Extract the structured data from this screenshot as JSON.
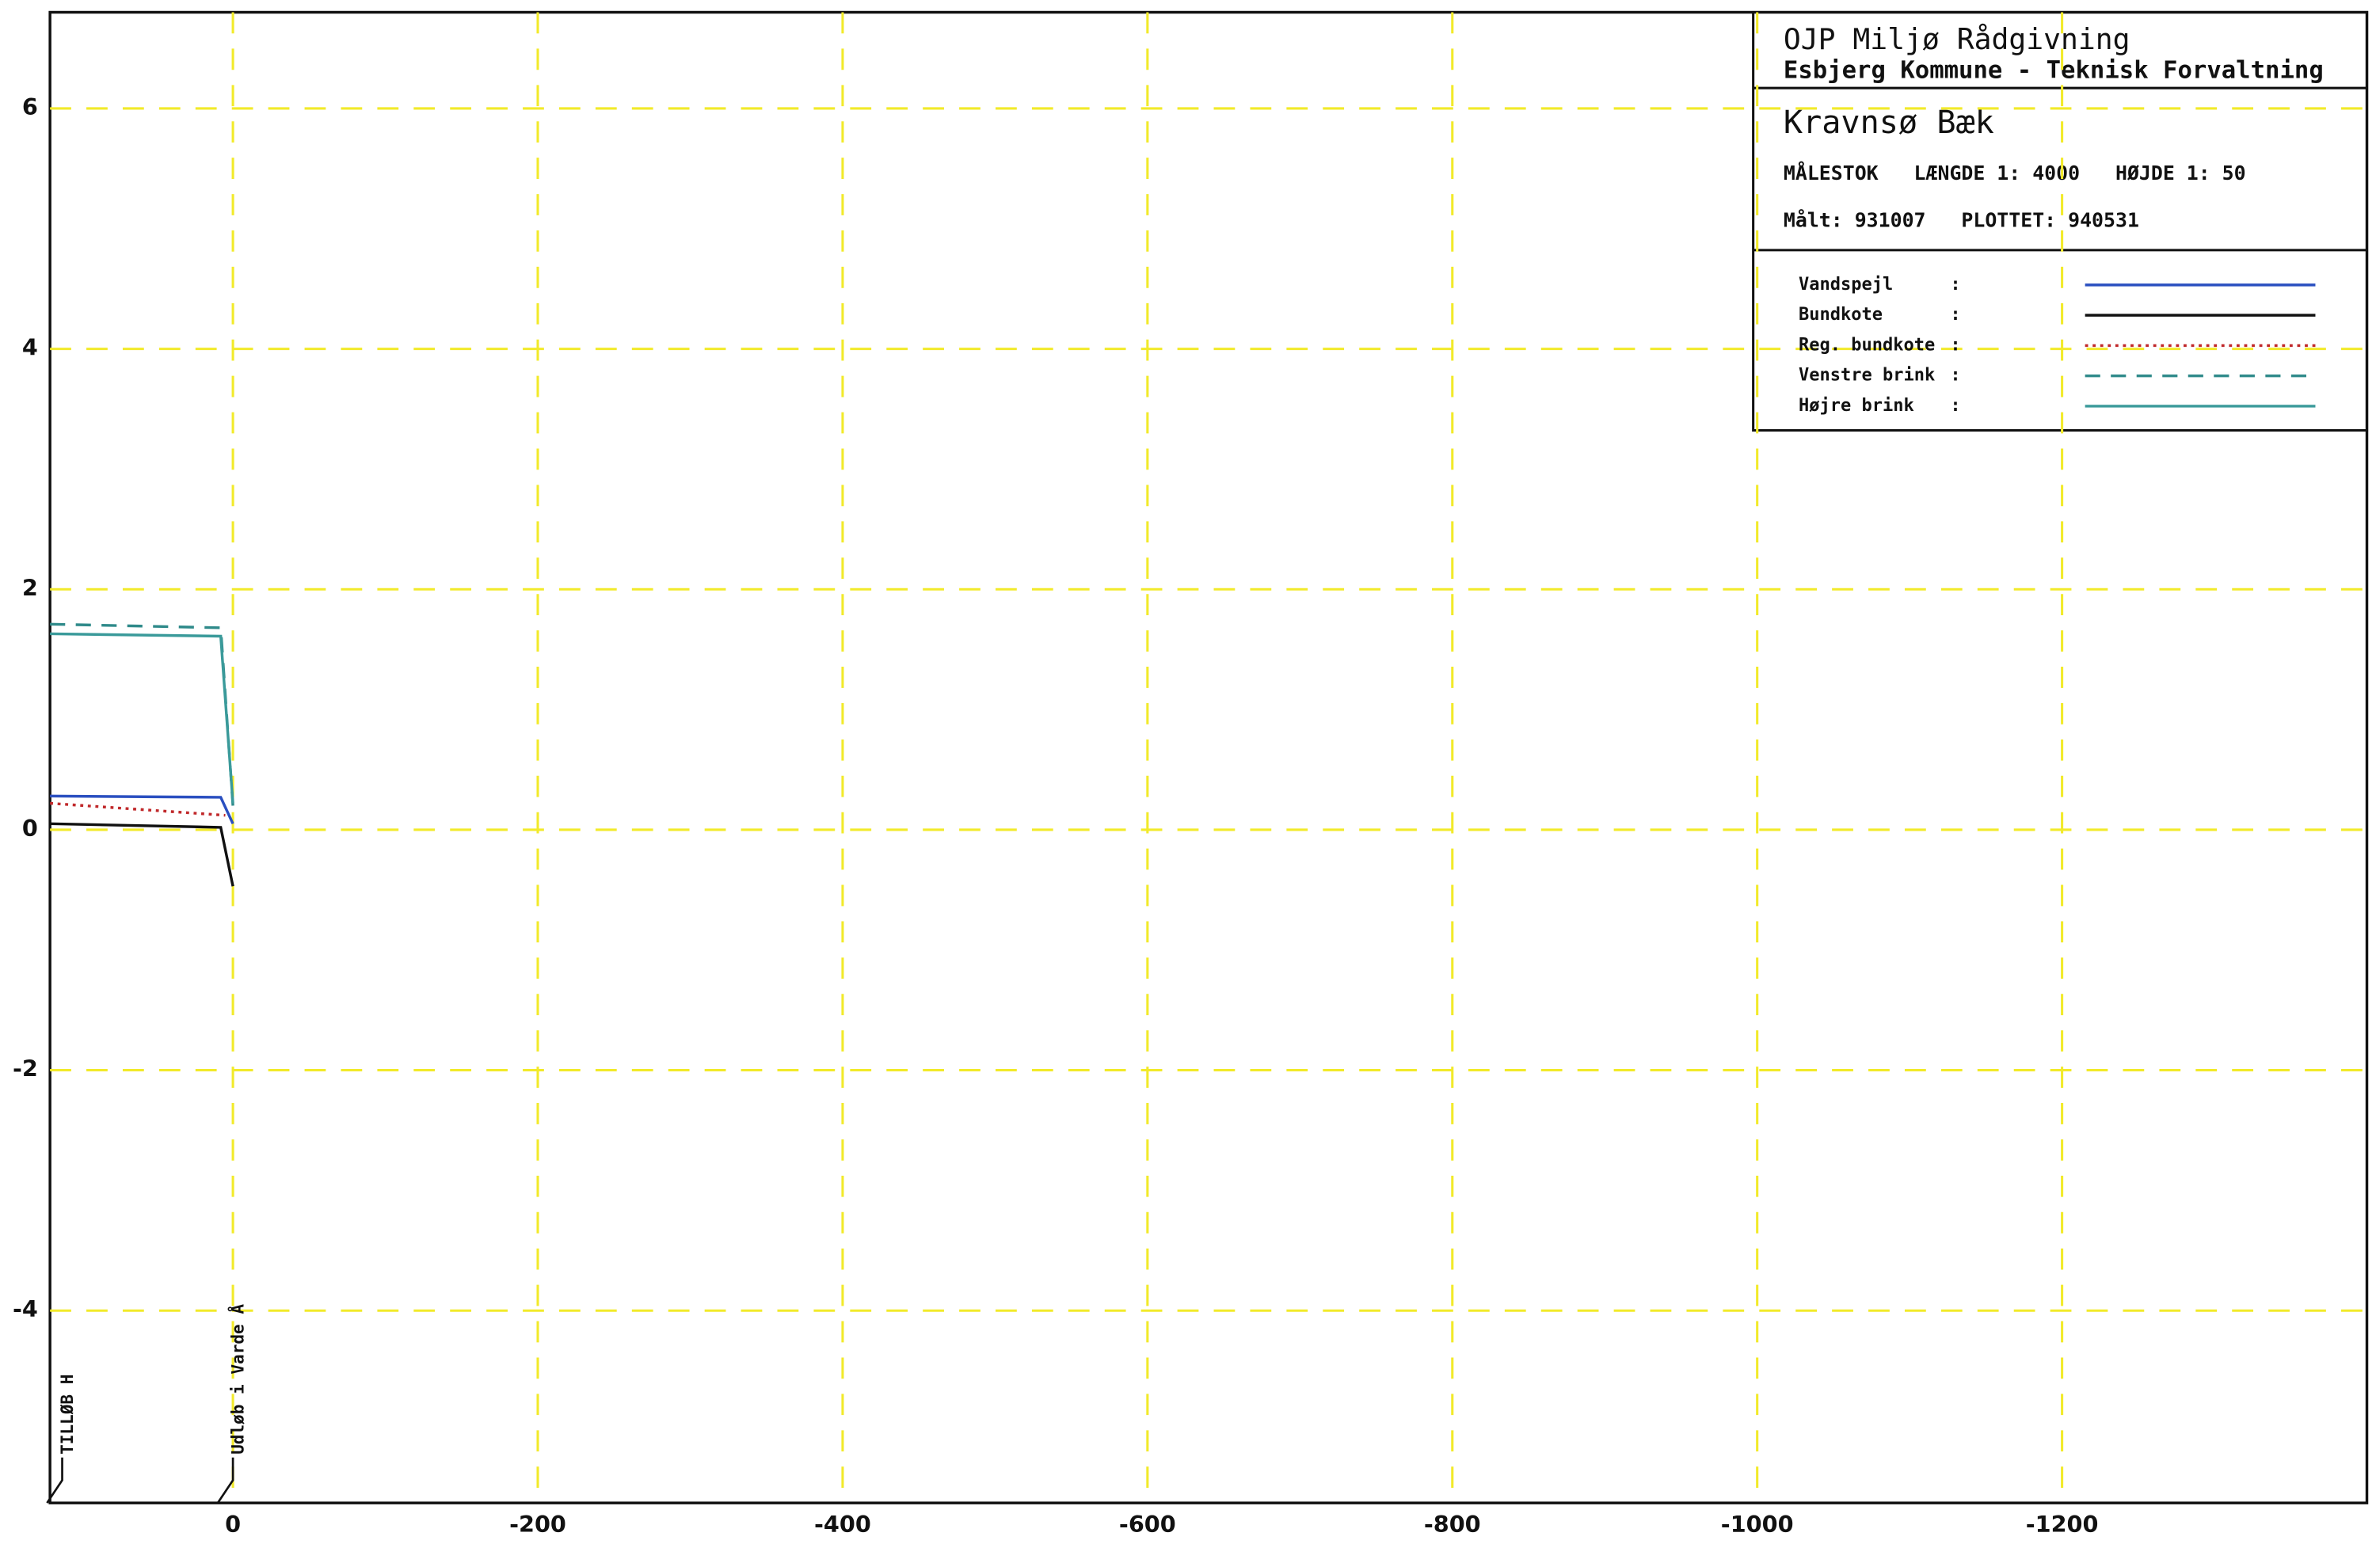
{
  "chart_data": {
    "type": "line",
    "title": "OJP Miljø Rådgivning",
    "subtitle": "Esbjerg Kommune - Teknisk Forvaltning",
    "stream_name": "Kravnsø Bæk",
    "scale_text": "MÅLESTOK   LÆNGDE 1: 4000   HØJDE 1: 50",
    "date_text": "Målt: 931007   PLOTTET: 940531",
    "legend_separator": ":",
    "xlim": [
      120,
      -1400
    ],
    "xticks": [
      0,
      -200,
      -400,
      -600,
      -800,
      -1000,
      -1200
    ],
    "ylim": [
      -5.6,
      6.8
    ],
    "yticks": [
      -4,
      -2,
      0,
      2,
      4,
      6
    ],
    "grid": true,
    "grid_color": "#f2ea2a",
    "legend": "upper right",
    "series": [
      {
        "name": "Vandspejl",
        "color": "#2a4fc0",
        "style": "solid",
        "x": [
          120,
          8,
          0
        ],
        "values": [
          0.28,
          0.27,
          0.05
        ]
      },
      {
        "name": "Bundkote",
        "color": "#111111",
        "style": "solid",
        "x": [
          120,
          8,
          0
        ],
        "values": [
          0.05,
          0.02,
          -0.47
        ]
      },
      {
        "name": "Reg. bundkote",
        "color": "#c0282a",
        "style": "dotted",
        "x": [
          120,
          5
        ],
        "values": [
          0.22,
          0.12
        ]
      },
      {
        "name": "Venstre brink",
        "color": "#2f8a8a",
        "style": "dashed",
        "x": [
          120,
          8,
          0
        ],
        "values": [
          1.71,
          1.68,
          0.2
        ]
      },
      {
        "name": "Højre brink",
        "color": "#3a9a9a",
        "style": "solid",
        "x": [
          120,
          8,
          0
        ],
        "values": [
          1.63,
          1.61,
          0.22
        ]
      }
    ],
    "annotations": [
      {
        "text": "TILLØB H",
        "x": 112
      },
      {
        "text": "Udløb i Varde Å",
        "x": 0
      }
    ]
  }
}
